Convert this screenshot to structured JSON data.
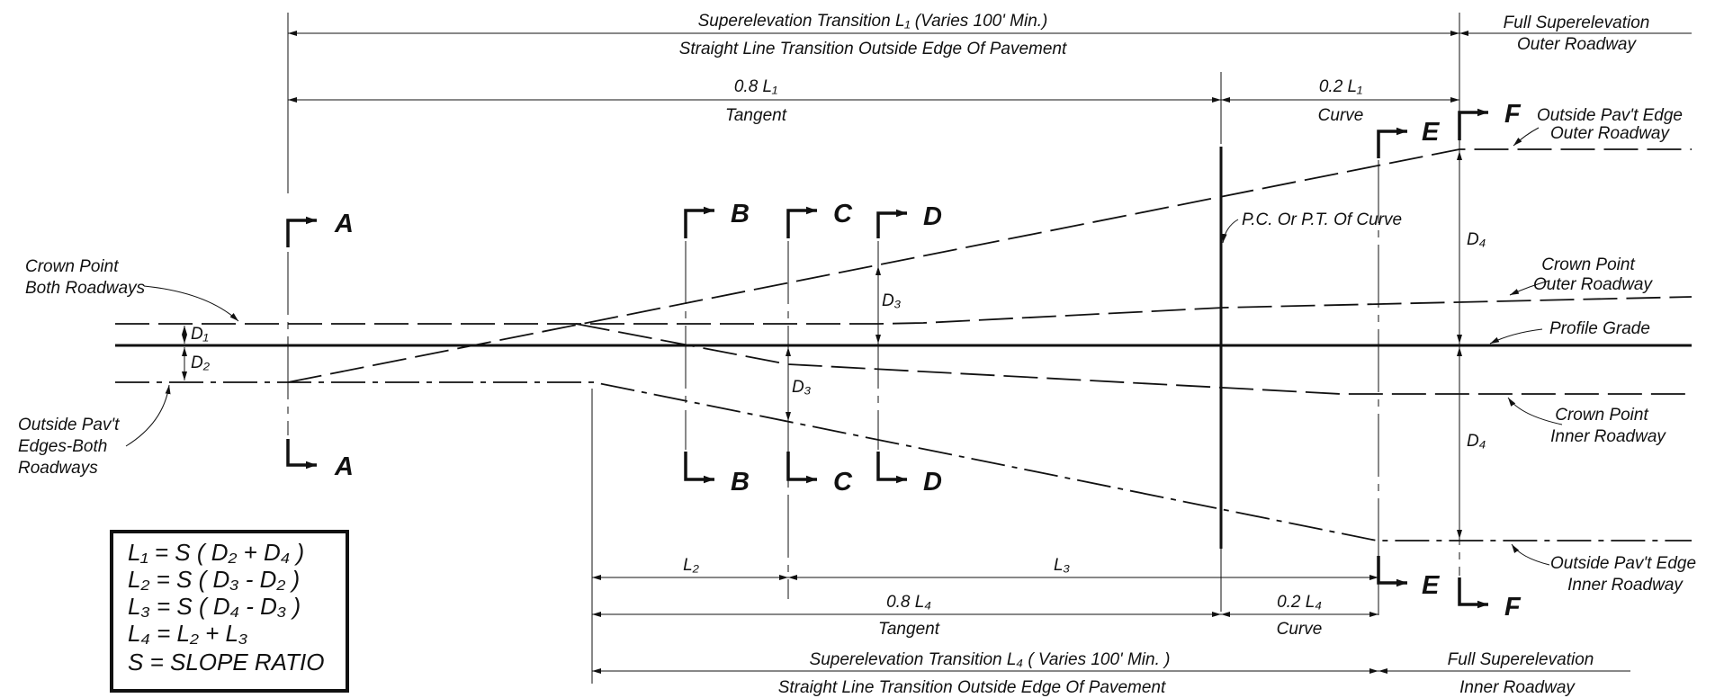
{
  "top_dimensions": {
    "l1_label": "Superelevation Transition L₁ (Varies 100' Min.)",
    "l1_sublabel": "Straight Line Transition Outside Edge Of Pavement",
    "l1_08_label": "0.8 L₁",
    "l1_08_sublabel": "Tangent",
    "l1_02_label": "0.2 L₁",
    "l1_02_sublabel": "Curve",
    "full_super_outer_1": "Full Superelevation",
    "full_super_outer_2": "Outer Roadway"
  },
  "bottom_dimensions": {
    "l2_label": "L₂",
    "l3_label": "L₃",
    "l4_08_label": "0.8 L₄",
    "l4_08_sublabel": "Tangent",
    "l4_02_label": "0.2 L₄",
    "l4_02_sublabel": "Curve",
    "l4_label": "Superelevation Transition L₄ ( Varies 100' Min. )",
    "l4_sublabel": "Straight Line Transition Outside Edge Of Pavement",
    "full_super_inner_1": "Full Superelevation",
    "full_super_inner_2": "Inner Roadway"
  },
  "callouts": {
    "crown_both_1": "Crown Point",
    "crown_both_2": "Both Roadways",
    "outside_both_1": "Outside Pav't",
    "outside_both_2": "Edges-Both",
    "outside_both_3": "Roadways",
    "pc_pt": "P.C. Or P.T. Of Curve",
    "outside_outer_1": "Outside Pav't Edge",
    "outside_outer_2": "Outer Roadway",
    "crown_outer_1": "Crown Point",
    "crown_outer_2": "Outer Roadway",
    "profile_grade": "Profile Grade",
    "crown_inner_1": "Crown Point",
    "crown_inner_2": "Inner Roadway",
    "outside_inner_1": "Outside Pav't Edge",
    "outside_inner_2": "Inner Roadway"
  },
  "distances": {
    "d1": "D₁",
    "d2": "D₂",
    "d3": "D₃",
    "d4": "D₄"
  },
  "sections": {
    "a": "A",
    "b": "B",
    "c": "C",
    "d": "D",
    "e": "E",
    "f": "F"
  },
  "formulas": {
    "f1": "L₁ = S ( D₂ + D₄ )",
    "f2": "L₂ = S ( D₃ - D₂ )",
    "f3": "L₃ = S ( D₄ - D₃ )",
    "f4": "L₄ = L₂ + L₃",
    "f5": "S = SLOPE RATIO"
  }
}
